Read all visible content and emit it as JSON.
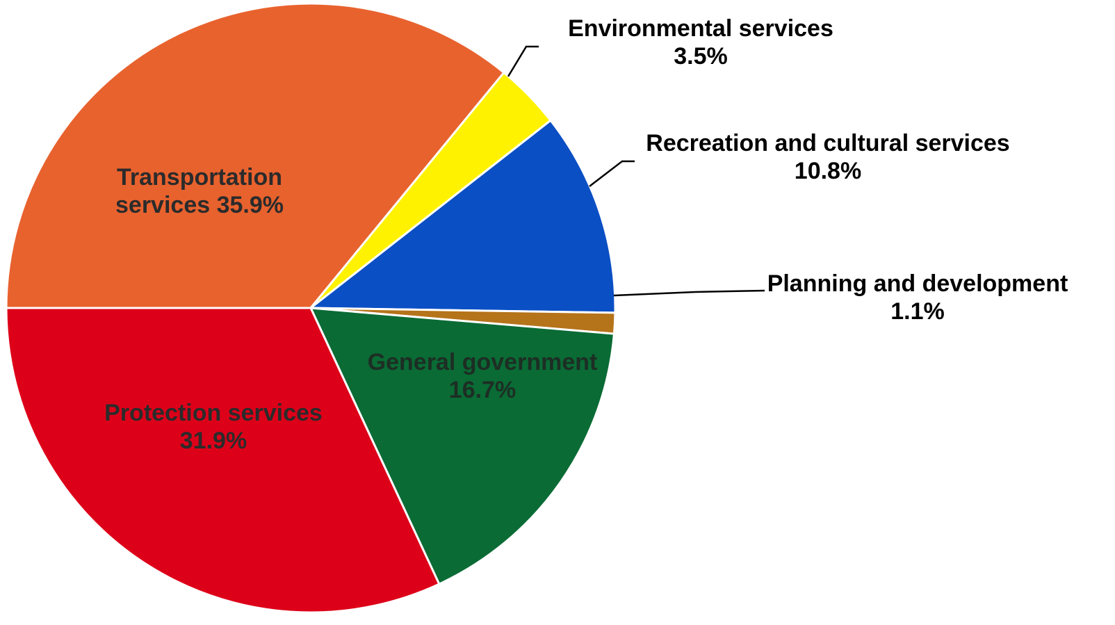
{
  "chart_data": {
    "type": "pie",
    "title": "",
    "unit": "%",
    "start_angle_deg": 180,
    "direction": "clockwise",
    "slices": [
      {
        "name": "Transportation services",
        "value": 35.9,
        "label_lines": [
          "Transportation",
          "services 35.9%"
        ],
        "color": "#E8622E"
      },
      {
        "name": "Environmental services",
        "value": 3.5,
        "label_lines": [
          "Environmental services",
          "3.5%"
        ],
        "color": "#FFF200"
      },
      {
        "name": "Recreation and cultural services",
        "value": 10.8,
        "label_lines": [
          "Recreation and cultural services",
          "10.8%"
        ],
        "color": "#0B4FC4"
      },
      {
        "name": "Planning and development",
        "value": 1.1,
        "label_lines": [
          "Planning and development",
          "1.1%"
        ],
        "color": "#B5731A"
      },
      {
        "name": "General government",
        "value": 16.7,
        "label_lines": [
          "General government",
          "16.7%"
        ],
        "color": "#0A6B35"
      },
      {
        "name": "Protection services",
        "value": 31.9,
        "label_lines": [
          "Protection services",
          "31.9%"
        ],
        "color": "#DD0019"
      }
    ]
  }
}
